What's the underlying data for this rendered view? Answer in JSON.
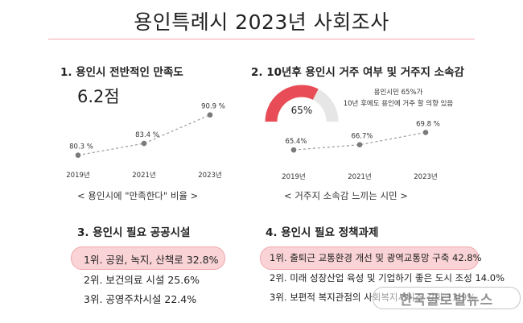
{
  "title": "용인특례시 2023년 사회조사",
  "colors": {
    "accent": "#e84d57",
    "pill": "#f9d3d5",
    "pill_border": "#f0a9ad",
    "rule": "#f3a9ad",
    "line": "#9a9a9a",
    "gauge_track": "#e6e6e6"
  },
  "section1": {
    "heading": "1. 용인시 전반적인 만족도",
    "big_value": "6.2점",
    "caption": "< 용인시에 \"만족한다\" 비율 >"
  },
  "section2": {
    "heading": "2. 10년후 용인시 거주 여부 및 거주지 소속감",
    "gauge_value": "65%",
    "gauge_note_line1": "용인시민 65%가",
    "gauge_note_line2": "10년 후에도 용인에 거주 할 의향 있음",
    "caption": "< 거주지 소속감 느끼는 시민 >"
  },
  "section3": {
    "heading": "3. 용인시 필요 공공시설",
    "items": [
      "1위. 공원, 녹지, 산책로 32.8%",
      "2위. 보건의료 시설 25.6%",
      "3위. 공영주차시설 22.4%"
    ]
  },
  "section4": {
    "heading": "4. 용인시 필요 정책과제",
    "items": [
      "1위. 출퇴근 교통환경 개선 및 광역교통망 구축 42.8%",
      "2위. 미래 성장산업 육성 및 기업하기 좋은 도시 조성 14.0%",
      "3위. 보편적 복지관점의 사회복지서비스 강화 13.9%"
    ]
  },
  "watermark": "한국글로벌뉴스",
  "chart_data": [
    {
      "type": "line",
      "categories": [
        "2019년",
        "2021년",
        "2023년"
      ],
      "values": [
        80.3,
        83.4,
        90.9
      ],
      "data_labels": [
        "80.3 %",
        "83.4 %",
        "90.9 %"
      ],
      "ylim": [
        76,
        94
      ],
      "style": "dashed"
    },
    {
      "type": "line",
      "categories": [
        "2019년",
        "2021년",
        "2023년"
      ],
      "values": [
        65.4,
        66.7,
        69.8
      ],
      "data_labels": [
        "65.4%",
        "66.7%",
        "69.8 %"
      ],
      "ylim": [
        63,
        71.5
      ],
      "style": "dashed"
    },
    {
      "type": "pie",
      "subtype": "semi-gauge",
      "value": 65,
      "max": 100,
      "label": "65%"
    }
  ]
}
